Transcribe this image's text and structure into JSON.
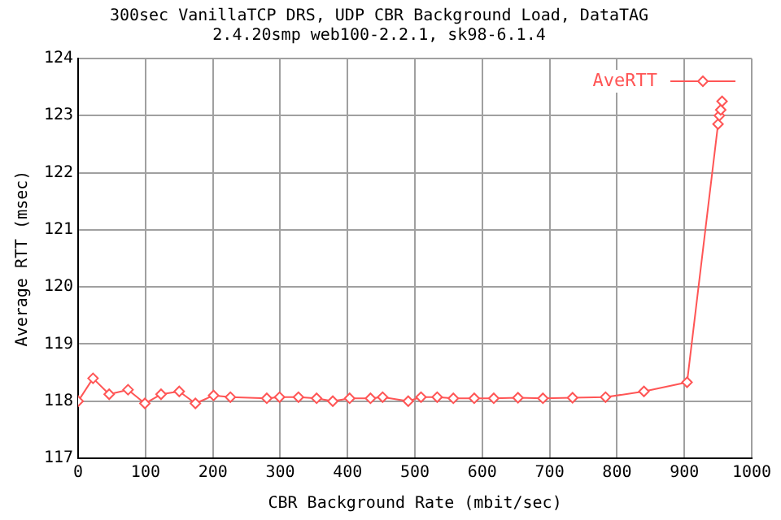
{
  "chart_data": {
    "type": "line",
    "title": "300sec VanillaTCP DRS, UDP CBR Background Load, DataTAG",
    "subtitle": "2.4.20smp web100-2.2.1, sk98-6.1.4",
    "xlabel": "CBR Background Rate (mbit/sec)",
    "ylabel": "Average RTT (msec)",
    "xlim": [
      0,
      1000
    ],
    "xticks": [
      0,
      100,
      200,
      300,
      400,
      500,
      600,
      700,
      800,
      900,
      1000
    ],
    "ylim": [
      117,
      124
    ],
    "yticks": [
      117,
      118,
      119,
      120,
      121,
      122,
      123,
      124
    ],
    "grid": true,
    "legend": "top right",
    "marker": "diamond",
    "line_style": "solid",
    "series": [
      {
        "name": "AveRTT",
        "color": "#ff5555",
        "x": [
          0,
          22,
          46,
          74,
          99,
          123,
          150,
          174,
          201,
          226,
          280,
          299,
          327,
          354,
          378,
          403,
          434,
          452,
          490,
          509,
          533,
          557,
          588,
          617,
          653,
          690,
          734,
          783,
          840,
          904,
          950,
          952,
          954,
          956
        ],
        "values": [
          118.0,
          118.4,
          118.12,
          118.2,
          117.96,
          118.12,
          118.17,
          117.96,
          118.1,
          118.07,
          118.05,
          118.07,
          118.07,
          118.05,
          118.0,
          118.05,
          118.05,
          118.07,
          118.0,
          118.07,
          118.07,
          118.05,
          118.05,
          118.05,
          118.06,
          118.05,
          118.06,
          118.07,
          118.17,
          118.33,
          122.85,
          123.0,
          123.1,
          123.25
        ]
      }
    ]
  }
}
